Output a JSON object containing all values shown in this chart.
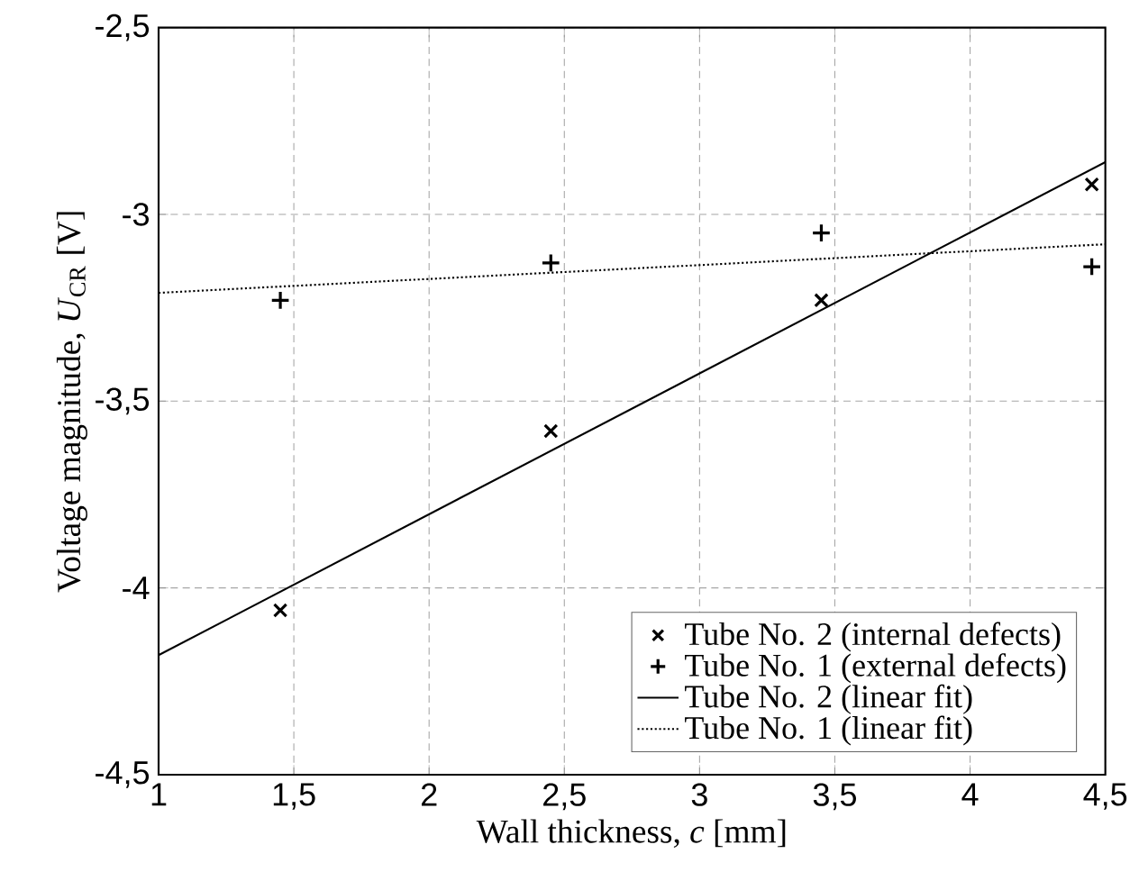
{
  "chart_data": {
    "type": "scatter",
    "xlabel": "Wall thickness, *c* [mm]",
    "ylabel": "Voltage magnitude, *U*$_{CR}$ [V]",
    "xlim": [
      1,
      4.5
    ],
    "ylim": [
      -4.5,
      -2.5
    ],
    "xticks": [
      1,
      {
        "value": 1.5,
        "label": "1,5"
      },
      2,
      {
        "value": 2.5,
        "label": "2,5"
      },
      3,
      {
        "value": 3.5,
        "label": "3,5"
      },
      4,
      {
        "value": 4.5,
        "label": "4,5"
      }
    ],
    "yticks": [
      {
        "value": -4.5,
        "label": "-4,5"
      },
      -4,
      {
        "value": -3.5,
        "label": "-3,5"
      },
      -3,
      {
        "value": -2.5,
        "label": "-2,5"
      }
    ],
    "grid": true,
    "legend": "bottom right",
    "series": [
      {
        "name": "Tube No. 2 (internal defects)",
        "marker": "cross",
        "color": "#000000",
        "x": [
          1.45,
          2.45,
          3.45,
          4.45
        ],
        "values": [
          -4.06,
          -3.58,
          -3.23,
          -2.92
        ]
      },
      {
        "name": "Tube No. 1 (external defects)",
        "marker": "plus",
        "color": "#000000",
        "x": [
          1.45,
          2.45,
          3.45,
          4.45
        ],
        "values": [
          -3.23,
          -3.13,
          -3.05,
          -3.14
        ]
      },
      {
        "name": "Tube No. 2 (linear fit)",
        "type": "line",
        "marker": "none",
        "line_style": "solid",
        "color": "#000000",
        "x": [
          1,
          4.5
        ],
        "values": [
          -4.18,
          -2.86
        ]
      },
      {
        "name": "Tube No. 1 (linear fit)",
        "type": "line",
        "marker": "none",
        "line_style": "dotted",
        "color": "#000000",
        "x": [
          1,
          4.5
        ],
        "values": [
          -3.21,
          -3.08
        ]
      }
    ]
  }
}
